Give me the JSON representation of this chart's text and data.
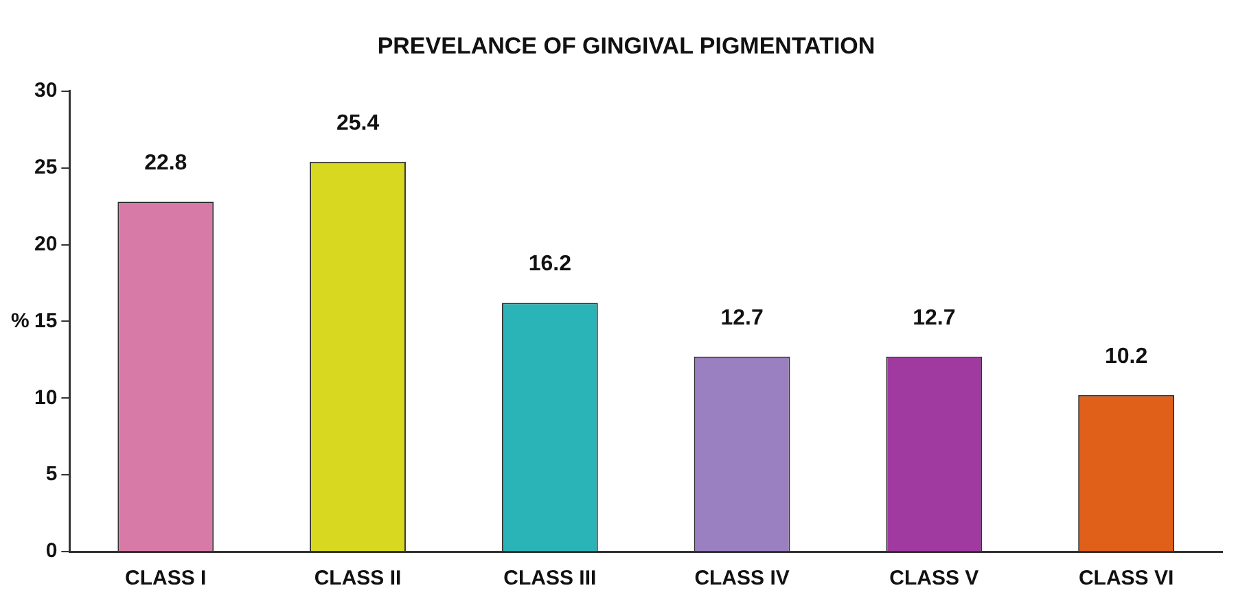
{
  "chart_data": {
    "type": "bar",
    "title": "PREVELANCE OF GINGIVAL PIGMENTATION",
    "ylabel": "%",
    "categories": [
      "CLASS I",
      "CLASS II",
      "CLASS III",
      "CLASS IV",
      "CLASS V",
      "CLASS VI"
    ],
    "values": [
      22.8,
      25.4,
      16.2,
      12.7,
      12.7,
      10.2
    ],
    "colors": [
      "#d87aa8",
      "#d8d820",
      "#2ab4b8",
      "#9a80c0",
      "#a03aa0",
      "#e0601a"
    ],
    "ylim": [
      0,
      30
    ],
    "yticks": [
      0,
      5,
      10,
      15,
      20,
      25,
      30
    ],
    "grid": false,
    "legend": false,
    "data_labels": true
  }
}
